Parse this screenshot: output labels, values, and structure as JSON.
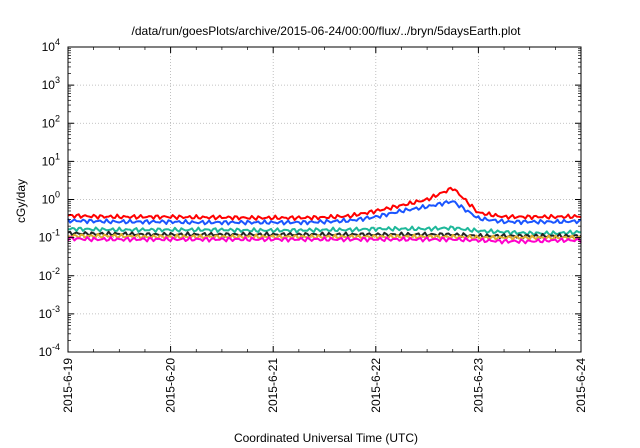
{
  "chart_data": {
    "type": "line",
    "title": "/data/run/goesPlots/archive/2015-06-24/00:00/flux/../bryn/5daysEarth.plot",
    "xlabel": "Coordinated Universal Time (UTC)",
    "ylabel": "cGy/day",
    "yscale": "log",
    "ylim": [
      0.0001,
      10000
    ],
    "xlim": [
      "2015-6-19",
      "2015-6-24"
    ],
    "grid": true,
    "x_ticks": [
      "2015-6-19",
      "2015-6-20",
      "2015-6-21",
      "2015-6-22",
      "2015-6-23",
      "2015-6-24"
    ],
    "y_ticks": [
      {
        "base": "10",
        "exp": "-4"
      },
      {
        "base": "10",
        "exp": "-3"
      },
      {
        "base": "10",
        "exp": "-2"
      },
      {
        "base": "10",
        "exp": "-1"
      },
      {
        "base": "10",
        "exp": "0"
      },
      {
        "base": "10",
        "exp": "1"
      },
      {
        "base": "10",
        "exp": "2"
      },
      {
        "base": "10",
        "exp": "3"
      },
      {
        "base": "10",
        "exp": "4"
      }
    ],
    "x_days": [
      0,
      0.25,
      0.5,
      0.75,
      1,
      1.25,
      1.5,
      1.75,
      2,
      2.25,
      2.5,
      2.75,
      3,
      3.25,
      3.5,
      3.75,
      4,
      4.25,
      4.5,
      4.75,
      5
    ],
    "series": [
      {
        "color": "#ff0000",
        "values": [
          0.38,
          0.36,
          0.35,
          0.35,
          0.35,
          0.34,
          0.34,
          0.33,
          0.33,
          0.33,
          0.34,
          0.37,
          0.5,
          0.7,
          1.0,
          2.0,
          0.45,
          0.35,
          0.35,
          0.35,
          0.36
        ]
      },
      {
        "color": "#1a55ff",
        "values": [
          0.28,
          0.27,
          0.26,
          0.26,
          0.26,
          0.25,
          0.25,
          0.25,
          0.25,
          0.25,
          0.26,
          0.28,
          0.35,
          0.5,
          0.65,
          0.9,
          0.32,
          0.26,
          0.26,
          0.26,
          0.27
        ]
      },
      {
        "color": "#1fb89a",
        "values": [
          0.17,
          0.165,
          0.16,
          0.16,
          0.16,
          0.16,
          0.16,
          0.155,
          0.155,
          0.155,
          0.16,
          0.16,
          0.17,
          0.17,
          0.17,
          0.18,
          0.15,
          0.14,
          0.13,
          0.13,
          0.14
        ]
      },
      {
        "color": "#222222",
        "values": [
          0.13,
          0.125,
          0.125,
          0.12,
          0.12,
          0.12,
          0.12,
          0.12,
          0.12,
          0.12,
          0.12,
          0.12,
          0.12,
          0.12,
          0.12,
          0.12,
          0.11,
          0.11,
          0.11,
          0.11,
          0.11
        ]
      },
      {
        "color": "#e0b030",
        "values": [
          0.11,
          0.11,
          0.11,
          0.105,
          0.105,
          0.105,
          0.105,
          0.105,
          0.105,
          0.105,
          0.105,
          0.105,
          0.105,
          0.105,
          0.105,
          0.105,
          0.1,
          0.1,
          0.1,
          0.1,
          0.1
        ]
      },
      {
        "color": "#ff00cc",
        "values": [
          0.095,
          0.09,
          0.09,
          0.09,
          0.09,
          0.09,
          0.09,
          0.09,
          0.09,
          0.09,
          0.09,
          0.09,
          0.09,
          0.09,
          0.09,
          0.09,
          0.085,
          0.08,
          0.08,
          0.085,
          0.085
        ]
      }
    ]
  }
}
